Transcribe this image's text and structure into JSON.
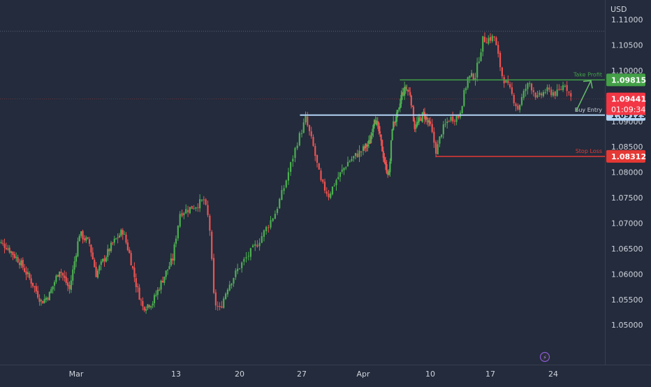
{
  "colors": {
    "background": "#232b3c",
    "up": "#26a69a",
    "up_candle": "#4caf50",
    "down": "#ef5350",
    "take_profit": "#43a047",
    "buy_entry": "#b3d4f5",
    "stop_loss": "#e53935",
    "axis_text": "#d1d4dc",
    "current_price": "#f23645"
  },
  "chart_data": {
    "type": "candlestick",
    "currency": "USD",
    "ylim": [
      1.0466,
      1.1122
    ],
    "y_ticks": [
      "1.11000",
      "1.10500",
      "1.10000",
      "1.09500",
      "1.09000",
      "1.08500",
      "1.08000",
      "1.07500",
      "1.07000",
      "1.06500",
      "1.06000",
      "1.05500",
      "1.05000"
    ],
    "x_ticks": [
      "Mar",
      "13",
      "20",
      "27",
      "Apr",
      "10",
      "17",
      "24"
    ],
    "x_tick_positions": [
      12,
      27,
      35,
      42,
      50,
      65,
      73,
      81
    ],
    "x_domain": [
      0,
      97
    ],
    "levels": [
      {
        "name": "Take Profit",
        "price": 1.09815,
        "price_text": "1.09815",
        "start_t": 58.2
      },
      {
        "name": "Buy Entry",
        "price": 1.09123,
        "price_text": "1.09123",
        "start_t": 41.8
      },
      {
        "name": "Stop Loss",
        "price": 1.08312,
        "price_text": "1.08312",
        "start_t": 65.8
      }
    ],
    "current_price": {
      "price": 1.09441,
      "price_text": "1.09441",
      "countdown": "01:09:34"
    },
    "dotted_high": 1.1077,
    "projection_arrow": {
      "from": [
        83.4,
        1.094
      ],
      "to": [
        85.8,
        1.098
      ]
    },
    "anchors": [
      [
        0,
        1.0665
      ],
      [
        1.5,
        1.0655
      ],
      [
        3.5,
        1.0625
      ],
      [
        5.5,
        1.058
      ],
      [
        6.8,
        1.0545
      ],
      [
        8,
        1.056
      ],
      [
        9.5,
        1.061
      ],
      [
        11,
        1.057
      ],
      [
        12.5,
        1.068
      ],
      [
        14,
        1.066
      ],
      [
        15,
        1.06
      ],
      [
        16,
        1.0625
      ],
      [
        17.5,
        1.066
      ],
      [
        19,
        1.0685
      ],
      [
        20,
        1.064
      ],
      [
        21,
        1.058
      ],
      [
        22,
        1.0535
      ],
      [
        23.5,
        1.0545
      ],
      [
        25,
        1.059
      ],
      [
        26.5,
        1.063
      ],
      [
        27.5,
        1.072
      ],
      [
        29.5,
        1.0735
      ],
      [
        30.5,
        1.0745
      ],
      [
        31.2,
        1.07
      ],
      [
        31.8,
        1.0545
      ],
      [
        32.5,
        1.053
      ],
      [
        33.5,
        1.0575
      ],
      [
        35,
        1.0615
      ],
      [
        37,
        1.066
      ],
      [
        38,
        1.069
      ],
      [
        39,
        1.072
      ],
      [
        40,
        1.077
      ],
      [
        41.5,
        1.086
      ],
      [
        42.5,
        1.0905
      ],
      [
        43.5,
        1.085
      ],
      [
        44.5,
        1.078
      ],
      [
        45.5,
        1.0755
      ],
      [
        46.5,
        1.0785
      ],
      [
        48,
        1.082
      ],
      [
        50,
        1.0845
      ],
      [
        51.5,
        1.086
      ],
      [
        52.5,
        1.091
      ],
      [
        53.5,
        1.088
      ],
      [
        55,
        1.081
      ],
      [
        55.8,
        1.0795
      ],
      [
        56.5,
        1.089
      ],
      [
        58,
        1.092
      ],
      [
        58.5,
        1.095
      ],
      [
        59.5,
        1.0965
      ],
      [
        60.5,
        1.0955
      ],
      [
        61.5,
        1.089
      ],
      [
        62.5,
        1.09
      ],
      [
        63.5,
        1.0915
      ],
      [
        65,
        1.089
      ],
      [
        65.8,
        1.084
      ],
      [
        66.5,
        1.088
      ],
      [
        67.5,
        1.0905
      ],
      [
        68.8,
        1.091
      ],
      [
        70,
        1.0985
      ],
      [
        71,
        1.099
      ],
      [
        72,
        1.106
      ],
      [
        73.5,
        1.1065
      ],
      [
        74.5,
        1.099
      ],
      [
        75.5,
        1.096
      ],
      [
        76.5,
        1.0925
      ],
      [
        77.5,
        1.0965
      ],
      [
        78,
        1.0975
      ],
      [
        79,
        1.0945
      ],
      [
        80,
        1.096
      ],
      [
        81.5,
        1.0955
      ],
      [
        82.5,
        1.0975
      ],
      [
        83.4,
        1.0942
      ]
    ]
  },
  "tv_logo": "⚡"
}
